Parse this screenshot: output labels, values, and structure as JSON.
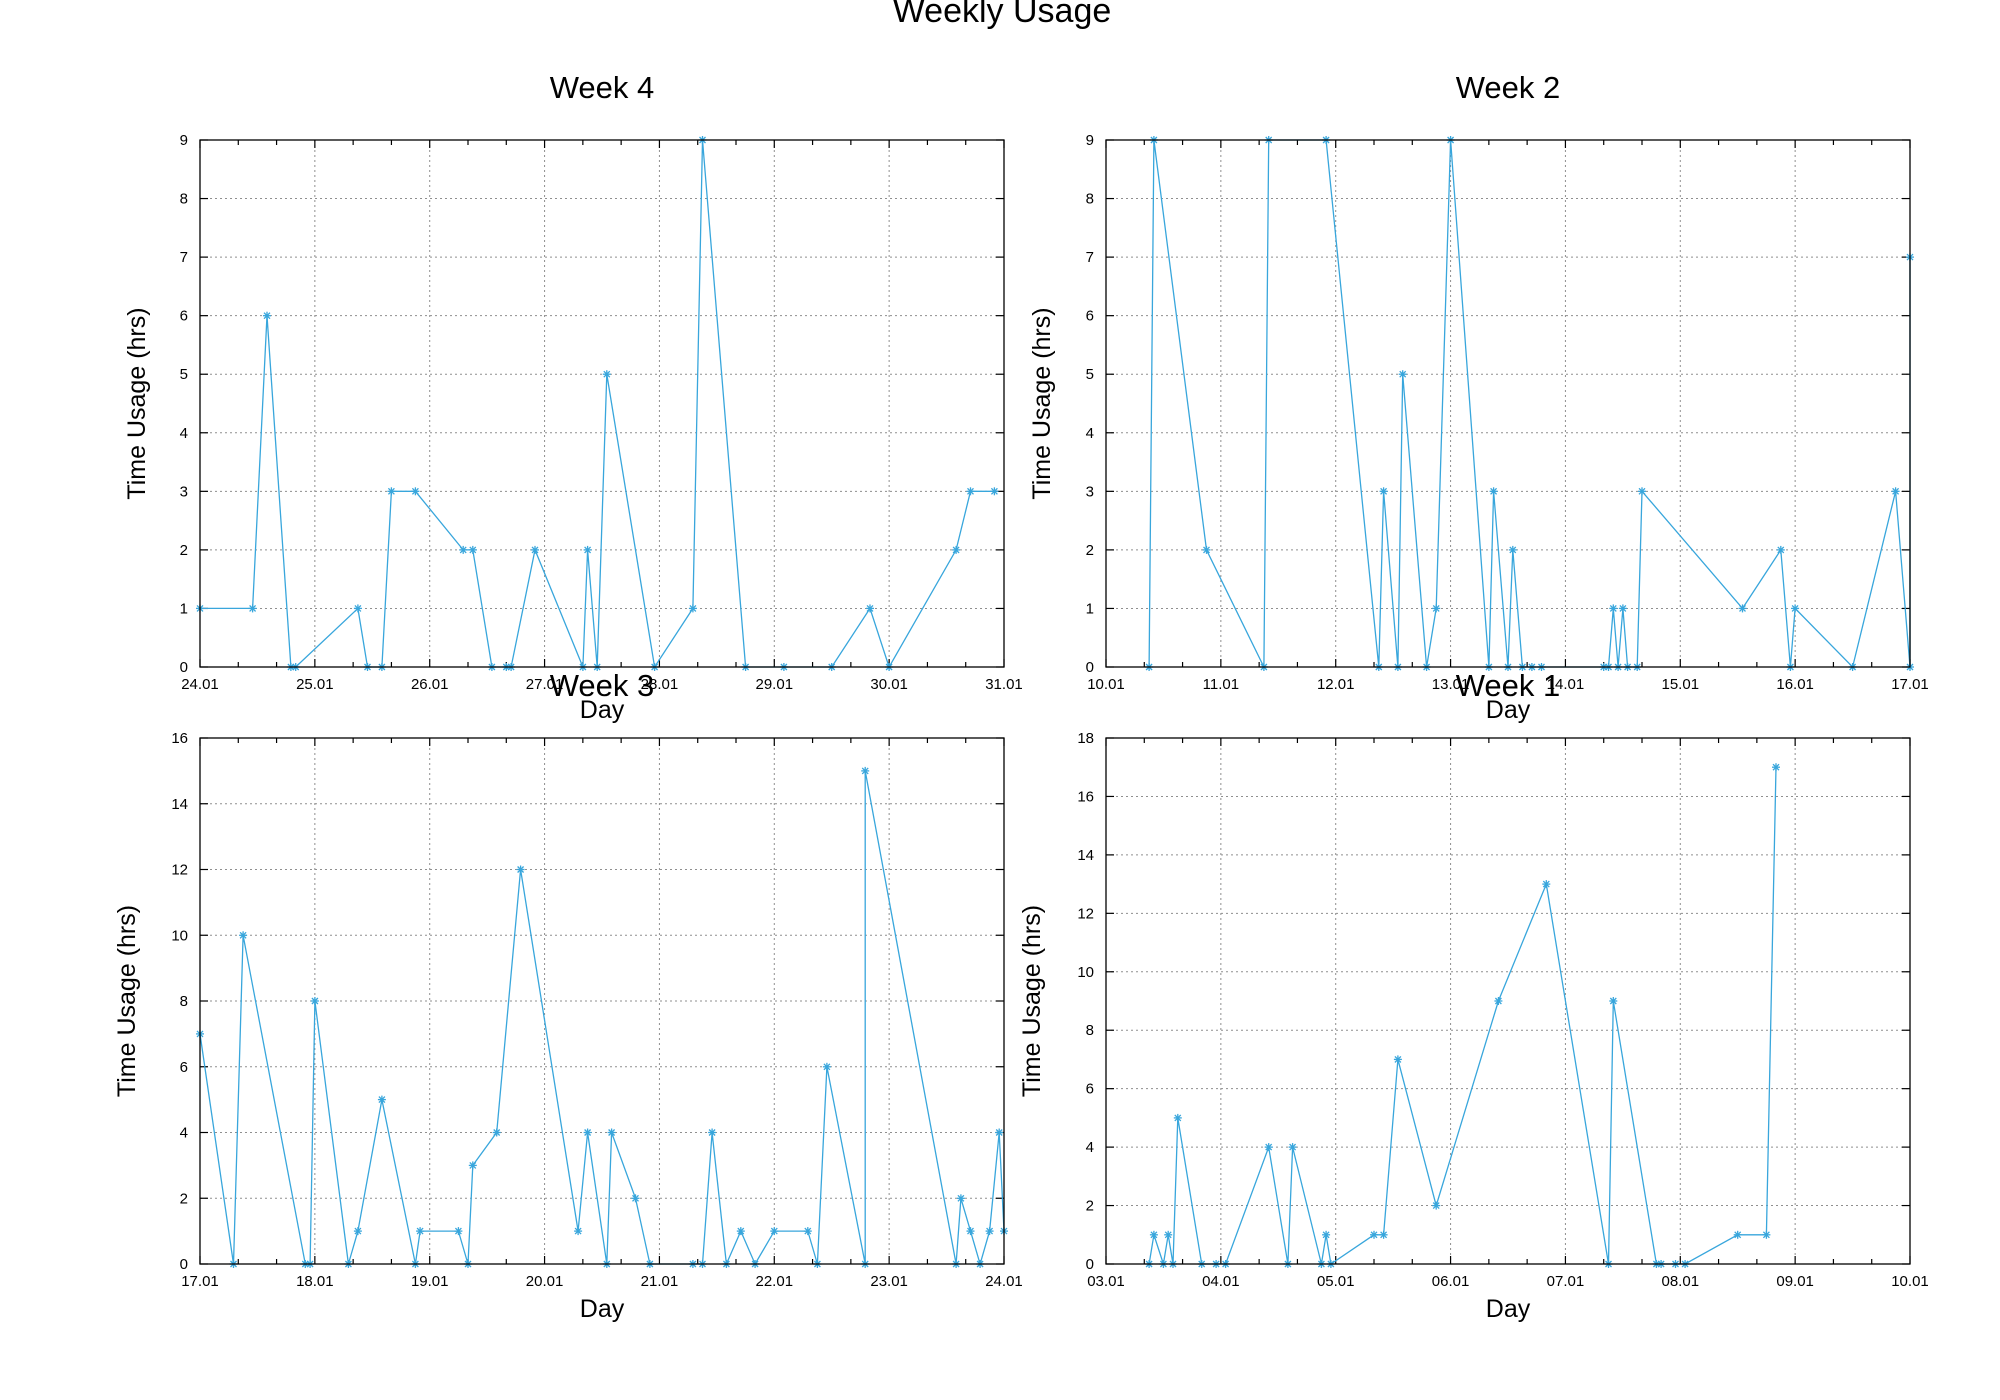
{
  "title": "Weekly Usage",
  "colors": {
    "series": "#38a6dc",
    "grid": "#8f8f8f",
    "axes": "#000000"
  },
  "chart_data": [
    {
      "type": "line",
      "title": "Week 4",
      "xlabel": "Day",
      "ylabel": "Time Usage (hrs)",
      "grid": true,
      "x_axis": "date",
      "xlim": [
        "24.01",
        "31.01"
      ],
      "xticks": [
        "24.01",
        "25.01",
        "26.01",
        "27.01",
        "28.01",
        "29.01",
        "30.01",
        "31.01"
      ],
      "ylim": [
        0,
        9
      ],
      "yticks": [
        "0",
        "1",
        "2",
        "3",
        "4",
        "5",
        "6",
        "7",
        "8",
        "9"
      ],
      "series": [
        {
          "marker": "star",
          "points": [
            [
              "24.01 00:00",
              1
            ],
            [
              "24.01 11:00",
              1
            ],
            [
              "24.01 14:00",
              6
            ],
            [
              "24.01 19:00",
              0
            ],
            [
              "24.01 20:00",
              0
            ],
            [
              "25.01 09:00",
              1
            ],
            [
              "25.01 11:00",
              0
            ],
            [
              "25.01 14:00",
              0
            ],
            [
              "25.01 16:00",
              3
            ],
            [
              "25.01 21:00",
              3
            ],
            [
              "26.01 07:00",
              2
            ],
            [
              "26.01 09:00",
              2
            ],
            [
              "26.01 13:00",
              0
            ],
            [
              "26.01 16:00",
              0
            ],
            [
              "26.01 17:00",
              0
            ],
            [
              "26.01 22:00",
              2
            ],
            [
              "27.01 08:00",
              0
            ],
            [
              "27.01 09:00",
              2
            ],
            [
              "27.01 11:00",
              0
            ],
            [
              "27.01 13:00",
              5
            ],
            [
              "27.01 23:00",
              0
            ],
            [
              "28.01 07:00",
              1
            ],
            [
              "28.01 09:00",
              9
            ],
            [
              "28.01 18:00",
              0
            ],
            [
              "29.01 02:00",
              0
            ],
            [
              "29.01 12:00",
              0
            ],
            [
              "29.01 20:00",
              1
            ],
            [
              "30.01 00:00",
              0
            ],
            [
              "30.01 14:00",
              2
            ],
            [
              "30.01 17:00",
              3
            ],
            [
              "30.01 22:00",
              3
            ]
          ]
        }
      ]
    },
    {
      "type": "line",
      "title": "Week 2",
      "xlabel": "Day",
      "ylabel": "Time Usage (hrs)",
      "grid": true,
      "x_axis": "date",
      "xlim": [
        "10.01",
        "17.01"
      ],
      "xticks": [
        "10.01",
        "11.01",
        "12.01",
        "13.01",
        "14.01",
        "15.01",
        "16.01",
        "17.01"
      ],
      "ylim": [
        0,
        9
      ],
      "yticks": [
        "0",
        "1",
        "2",
        "3",
        "4",
        "5",
        "6",
        "7",
        "8",
        "9"
      ],
      "series": [
        {
          "marker": "star",
          "points": [
            [
              "10.01 09:00",
              0
            ],
            [
              "10.01 10:00",
              9
            ],
            [
              "10.01 21:00",
              2
            ],
            [
              "11.01 09:00",
              0
            ],
            [
              "11.01 10:00",
              9
            ],
            [
              "11.01 22:00",
              9
            ],
            [
              "12.01 09:00",
              0
            ],
            [
              "12.01 10:00",
              3
            ],
            [
              "12.01 13:00",
              0
            ],
            [
              "12.01 14:00",
              5
            ],
            [
              "12.01 19:00",
              0
            ],
            [
              "12.01 21:00",
              1
            ],
            [
              "13.01 00:00",
              9
            ],
            [
              "13.01 08:00",
              0
            ],
            [
              "13.01 09:00",
              3
            ],
            [
              "13.01 12:00",
              0
            ],
            [
              "13.01 13:00",
              2
            ],
            [
              "13.01 15:00",
              0
            ],
            [
              "13.01 17:00",
              0
            ],
            [
              "13.01 19:00",
              0
            ],
            [
              "14.01 08:00",
              0
            ],
            [
              "14.01 09:00",
              0
            ],
            [
              "14.01 10:00",
              1
            ],
            [
              "14.01 11:00",
              0
            ],
            [
              "14.01 12:00",
              1
            ],
            [
              "14.01 13:00",
              0
            ],
            [
              "14.01 15:00",
              0
            ],
            [
              "14.01 16:00",
              3
            ],
            [
              "15.01 13:00",
              1
            ],
            [
              "15.01 21:00",
              2
            ],
            [
              "15.01 23:00",
              0
            ],
            [
              "16.01 00:00",
              1
            ],
            [
              "16.01 12:00",
              0
            ],
            [
              "16.01 21:00",
              3
            ],
            [
              "17.01 00:00",
              0
            ],
            [
              "17.01 00:00",
              7
            ]
          ]
        }
      ]
    },
    {
      "type": "line",
      "title": "Week 3",
      "xlabel": "Day",
      "ylabel": "Time Usage (hrs)",
      "grid": true,
      "x_axis": "date",
      "xlim": [
        "17.01",
        "24.01"
      ],
      "xticks": [
        "17.01",
        "18.01",
        "19.01",
        "20.01",
        "21.01",
        "22.01",
        "23.01",
        "24.01"
      ],
      "ylim": [
        0,
        16
      ],
      "yticks": [
        "0",
        "2",
        "4",
        "6",
        "8",
        "10",
        "12",
        "14",
        "16"
      ],
      "series": [
        {
          "marker": "star",
          "points": [
            [
              "17.01 00:00",
              7
            ],
            [
              "17.01 07:00",
              0
            ],
            [
              "17.01 09:00",
              10
            ],
            [
              "17.01 22:00",
              0
            ],
            [
              "17.01 23:00",
              0
            ],
            [
              "18.01 00:00",
              8
            ],
            [
              "18.01 07:00",
              0
            ],
            [
              "18.01 09:00",
              1
            ],
            [
              "18.01 14:00",
              5
            ],
            [
              "18.01 21:00",
              0
            ],
            [
              "18.01 22:00",
              1
            ],
            [
              "19.01 06:00",
              1
            ],
            [
              "19.01 08:00",
              0
            ],
            [
              "19.01 09:00",
              3
            ],
            [
              "19.01 14:00",
              4
            ],
            [
              "19.01 19:00",
              12
            ],
            [
              "20.01 07:00",
              1
            ],
            [
              "20.01 09:00",
              4
            ],
            [
              "20.01 13:00",
              0
            ],
            [
              "20.01 14:00",
              4
            ],
            [
              "20.01 19:00",
              2
            ],
            [
              "20.01 22:00",
              0
            ],
            [
              "21.01 07:00",
              0
            ],
            [
              "21.01 09:00",
              0
            ],
            [
              "21.01 11:00",
              4
            ],
            [
              "21.01 14:00",
              0
            ],
            [
              "21.01 17:00",
              1
            ],
            [
              "21.01 20:00",
              0
            ],
            [
              "22.01 00:00",
              1
            ],
            [
              "22.01 07:00",
              1
            ],
            [
              "22.01 09:00",
              0
            ],
            [
              "22.01 11:00",
              6
            ],
            [
              "22.01 19:00",
              0
            ],
            [
              "22.01 19:00",
              15
            ],
            [
              "23.01 14:00",
              0
            ],
            [
              "23.01 15:00",
              2
            ],
            [
              "23.01 17:00",
              1
            ],
            [
              "23.01 19:00",
              0
            ],
            [
              "23.01 21:00",
              1
            ],
            [
              "23.01 23:00",
              4
            ],
            [
              "24.01 00:00",
              1
            ]
          ]
        }
      ]
    },
    {
      "type": "line",
      "title": "Week 1",
      "xlabel": "Day",
      "ylabel": "Time Usage (hrs)",
      "grid": true,
      "x_axis": "date",
      "xlim": [
        "03.01",
        "10.01"
      ],
      "xticks": [
        "03.01",
        "04.01",
        "05.01",
        "06.01",
        "07.01",
        "08.01",
        "09.01",
        "10.01"
      ],
      "ylim": [
        0,
        18
      ],
      "yticks": [
        "0",
        "2",
        "4",
        "6",
        "8",
        "10",
        "12",
        "14",
        "16",
        "18"
      ],
      "series": [
        {
          "marker": "star",
          "points": [
            [
              "03.01 09:00",
              0
            ],
            [
              "03.01 10:00",
              1
            ],
            [
              "03.01 12:00",
              0
            ],
            [
              "03.01 13:00",
              1
            ],
            [
              "03.01 14:00",
              0
            ],
            [
              "03.01 15:00",
              5
            ],
            [
              "03.01 20:00",
              0
            ],
            [
              "03.01 23:00",
              0
            ],
            [
              "04.01 01:00",
              0
            ],
            [
              "04.01 10:00",
              4
            ],
            [
              "04.01 14:00",
              0
            ],
            [
              "04.01 15:00",
              4
            ],
            [
              "04.01 21:00",
              0
            ],
            [
              "04.01 22:00",
              1
            ],
            [
              "04.01 23:00",
              0
            ],
            [
              "05.01 08:00",
              1
            ],
            [
              "05.01 10:00",
              1
            ],
            [
              "05.01 13:00",
              7
            ],
            [
              "05.01 21:00",
              2
            ],
            [
              "06.01 10:00",
              9
            ],
            [
              "06.01 20:00",
              13
            ],
            [
              "07.01 09:00",
              0
            ],
            [
              "07.01 10:00",
              9
            ],
            [
              "07.01 19:00",
              0
            ],
            [
              "07.01 20:00",
              0
            ],
            [
              "07.01 23:00",
              0
            ],
            [
              "08.01 01:00",
              0
            ],
            [
              "08.01 12:00",
              1
            ],
            [
              "08.01 18:00",
              1
            ],
            [
              "08.01 20:00",
              17
            ]
          ]
        }
      ]
    }
  ]
}
